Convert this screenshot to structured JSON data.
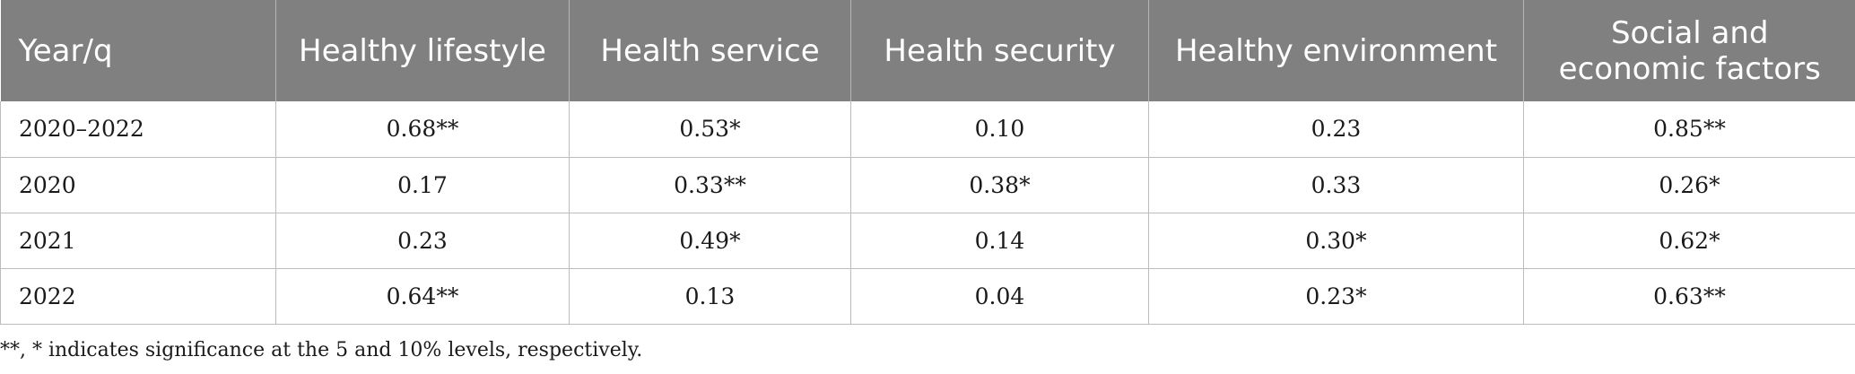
{
  "table": {
    "headers": [
      "Year/q",
      "Healthy lifestyle",
      "Health service",
      "Health security",
      "Healthy environment",
      "Social and economic factors"
    ],
    "rows": [
      [
        "2020–2022",
        "0.68**",
        "0.53*",
        "0.10",
        "0.23",
        "0.85**"
      ],
      [
        "2020",
        "0.17",
        "0.33**",
        "0.38*",
        "0.33",
        "0.26*"
      ],
      [
        "2021",
        "0.23",
        "0.49*",
        "0.14",
        "0.30*",
        "0.62*"
      ],
      [
        "2022",
        "0.64**",
        "0.13",
        "0.04",
        "0.23*",
        "0.63**"
      ]
    ]
  },
  "footnote": "**, * indicates significance at the 5 and 10% levels, respectively."
}
